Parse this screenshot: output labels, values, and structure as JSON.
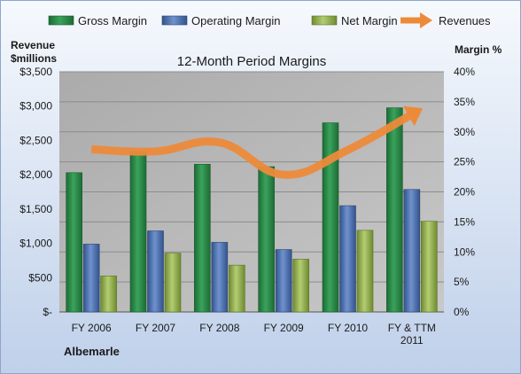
{
  "chart_data": {
    "type": "bar",
    "title": "12-Month Period Margins",
    "company": "Albemarle",
    "categories": [
      [
        "FY 2006"
      ],
      [
        "FY 2007"
      ],
      [
        "FY 2008"
      ],
      [
        "FY 2009"
      ],
      [
        "FY 2010"
      ],
      [
        "FY & TTM",
        "2011"
      ]
    ],
    "y_left_label": [
      "Revenue",
      "$millions"
    ],
    "y_right_label": "Margin %",
    "y_left_ticks": [
      "$-",
      "$500",
      "$1,000",
      "$1,500",
      "$2,000",
      "$2,500",
      "$3,000",
      "$3,500"
    ],
    "y_right_ticks": [
      "0%",
      "5%",
      "10%",
      "15%",
      "20%",
      "25%",
      "30%",
      "35%",
      "40%"
    ],
    "y_left_range": [
      0,
      3500
    ],
    "y_right_range": [
      0,
      40
    ],
    "series": [
      {
        "name": "Gross Margin",
        "axis": "right",
        "kind": "bar",
        "color": "#2e8b4a",
        "values": [
          23.2,
          26.7,
          24.6,
          24.2,
          31.5,
          34.0
        ]
      },
      {
        "name": "Operating Margin",
        "axis": "right",
        "kind": "bar",
        "color": "#4a6fb0",
        "values": [
          11.3,
          13.5,
          11.6,
          10.4,
          17.7,
          20.4
        ]
      },
      {
        "name": "Net Margin",
        "axis": "right",
        "kind": "bar",
        "color": "#92b04e",
        "values": [
          6.0,
          9.8,
          7.8,
          8.8,
          13.6,
          15.1
        ]
      },
      {
        "name": "Revenues",
        "axis": "left",
        "kind": "line",
        "color": "#ed8a3a",
        "values": [
          2370,
          2340,
          2470,
          2000,
          2360,
          2880
        ]
      }
    ],
    "legend_position": "top",
    "grid": true
  }
}
